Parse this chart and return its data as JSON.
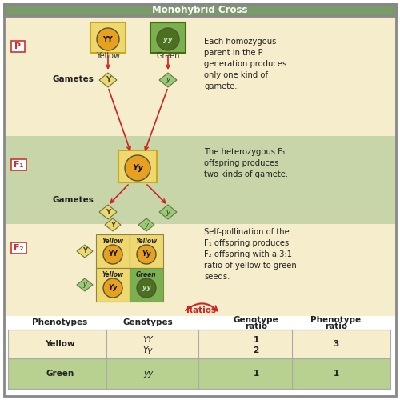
{
  "title": "Monohybrid Cross",
  "title_bg": "#7a9a6a",
  "title_color": "white",
  "section1_bg": "#f5edcc",
  "section2_bg": "#c8d5a8",
  "section3_bg": "#f5edcc",
  "yellow_seed_color": "#e8a020",
  "green_seed_color": "#4a7020",
  "yellow_box_color": "#f0d870",
  "green_box_color": "#7ab050",
  "diamond_yellow_color": "#f0d870",
  "diamond_green_color": "#9dc878",
  "arrow_color": "#cc2222",
  "section1_annotation": "Each homozygous\nparent in the P\ngeneration produces\nonly one kind of\ngamete.",
  "section2_annotation": "The heterozygous F₁\noffspring produces\ntwo kinds of gamete.",
  "section3_annotation": "Self-pollination of the\nF₁ offspring produces\nF₂ offspring with a 3:1\nratio of yellow to green\nseeds.",
  "ratios_text": "Ratios",
  "table_row1_bg": "#f5edcc",
  "table_row2_bg": "#b8d090"
}
